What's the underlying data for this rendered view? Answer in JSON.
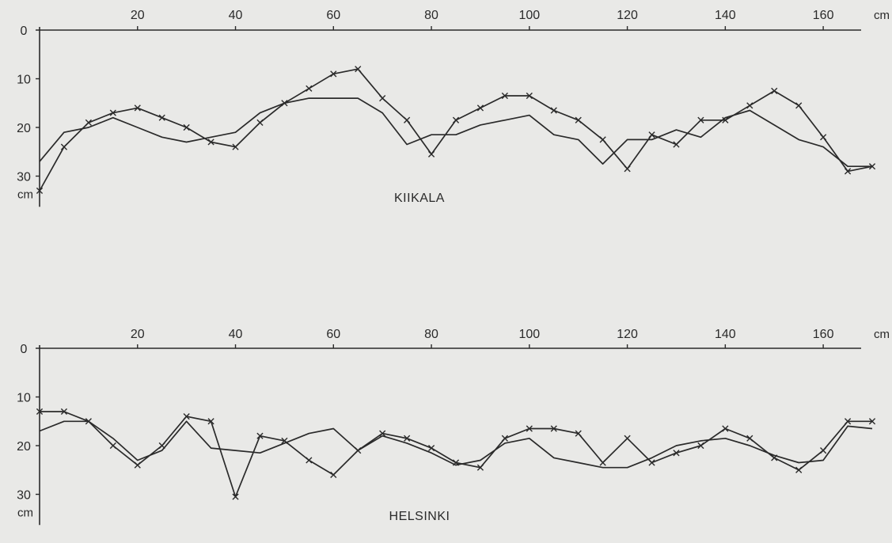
{
  "colors": {
    "background": "#e9e9e7",
    "ink": "#2a2a2a"
  },
  "chart_data": [
    {
      "type": "line",
      "title": "KIIKALA",
      "x_unit": "cm",
      "y_unit": "cm",
      "xlim": [
        0,
        170
      ],
      "ylim": [
        0,
        35
      ],
      "y_inverted": true,
      "x_ticks": [
        20,
        40,
        60,
        80,
        100,
        120,
        140,
        160
      ],
      "y_ticks": [
        0,
        10,
        20,
        30
      ],
      "grid": false,
      "series": [
        {
          "marker": "none",
          "x": [
            0,
            5,
            10,
            15,
            20,
            25,
            30,
            35,
            40,
            45,
            50,
            55,
            60,
            65,
            70,
            75,
            80,
            85,
            90,
            95,
            100,
            105,
            110,
            115,
            120,
            125,
            130,
            135,
            140,
            145,
            150,
            155,
            160,
            165,
            170
          ],
          "y": [
            27,
            21,
            20,
            18,
            20,
            22,
            23,
            22,
            21,
            17,
            15,
            14,
            14,
            14,
            17,
            23.5,
            21.5,
            21.5,
            19.5,
            18.5,
            17.5,
            21.5,
            22.5,
            27.5,
            22.5,
            22.5,
            20.5,
            22,
            18,
            16.5,
            19.5,
            22.5,
            24,
            28,
            28
          ]
        },
        {
          "marker": "x",
          "x": [
            0,
            5,
            10,
            15,
            20,
            25,
            30,
            35,
            40,
            45,
            50,
            55,
            60,
            65,
            70,
            75,
            80,
            85,
            90,
            95,
            100,
            105,
            110,
            115,
            120,
            125,
            130,
            135,
            140,
            145,
            150,
            155,
            160,
            165,
            170
          ],
          "y": [
            33,
            24,
            19,
            17,
            16,
            18,
            20,
            23,
            24,
            19,
            15,
            12,
            9,
            8,
            14,
            18.5,
            25.5,
            18.5,
            16,
            13.5,
            13.5,
            16.5,
            18.5,
            22.5,
            28.5,
            21.5,
            23.5,
            18.5,
            18.5,
            15.5,
            12.5,
            15.5,
            22,
            29,
            28
          ]
        }
      ]
    },
    {
      "type": "line",
      "title": "HELSINKI",
      "x_unit": "cm",
      "y_unit": "cm",
      "xlim": [
        0,
        170
      ],
      "ylim": [
        0,
        35
      ],
      "y_inverted": true,
      "x_ticks": [
        20,
        40,
        60,
        80,
        100,
        120,
        140,
        160
      ],
      "y_ticks": [
        0,
        10,
        20,
        30
      ],
      "grid": false,
      "series": [
        {
          "marker": "none",
          "x": [
            0,
            5,
            10,
            15,
            20,
            25,
            30,
            35,
            40,
            45,
            50,
            55,
            60,
            65,
            70,
            75,
            80,
            85,
            90,
            95,
            100,
            105,
            110,
            115,
            120,
            125,
            130,
            135,
            140,
            145,
            150,
            155,
            160,
            165,
            170
          ],
          "y": [
            17,
            15,
            15,
            18.5,
            23,
            21,
            15,
            20.5,
            21,
            21.5,
            19.5,
            17.5,
            16.5,
            21,
            18,
            19.5,
            21.5,
            24,
            23,
            19.5,
            18.5,
            22.5,
            23.5,
            24.5,
            24.5,
            22.5,
            20,
            19,
            18.5,
            20,
            22,
            23.5,
            23,
            16,
            16.5
          ]
        },
        {
          "marker": "x",
          "x": [
            0,
            5,
            10,
            15,
            20,
            25,
            30,
            35,
            40,
            45,
            50,
            55,
            60,
            65,
            70,
            75,
            80,
            85,
            90,
            95,
            100,
            105,
            110,
            115,
            120,
            125,
            130,
            135,
            140,
            145,
            150,
            155,
            160,
            165,
            170
          ],
          "y": [
            13,
            13,
            15,
            20,
            24,
            20,
            14,
            15,
            30.5,
            18,
            19,
            23,
            26,
            21,
            17.5,
            18.5,
            20.5,
            23.5,
            24.5,
            18.5,
            16.5,
            16.5,
            17.5,
            23.5,
            18.5,
            23.5,
            21.5,
            20,
            16.5,
            18.5,
            22.5,
            25,
            21,
            15,
            15
          ]
        }
      ]
    }
  ]
}
